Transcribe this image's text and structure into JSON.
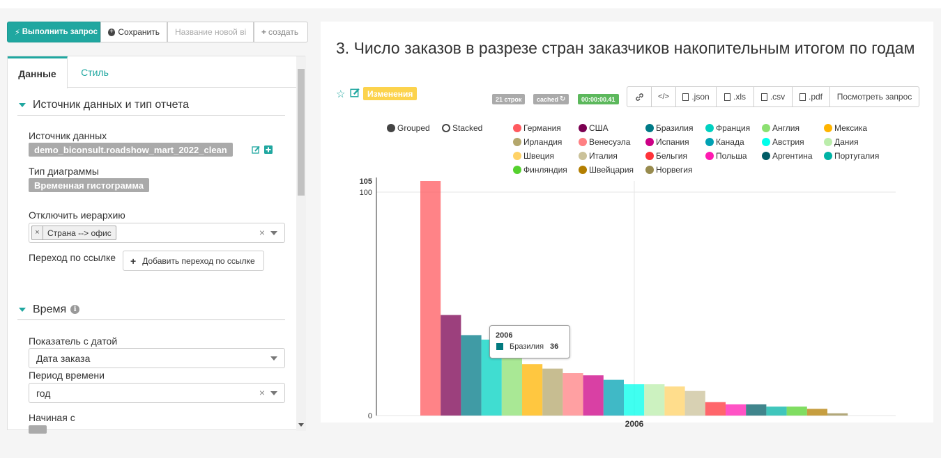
{
  "toolbar": {
    "run_label": "Выполнить запрос",
    "save_label": "Сохранить",
    "name_placeholder": "Название новой ві",
    "create_label": "создать"
  },
  "tabs": [
    {
      "label": "Данные",
      "active": true
    },
    {
      "label": "Стиль",
      "active": false
    }
  ],
  "datasource_section": {
    "title": "Источник данных и тип отчета",
    "datasource_label": "Источник данных",
    "datasource_value": "demo_biconsult.roadshow_mart_2022_clean",
    "viz_type_label": "Тип диаграммы",
    "viz_type_value": "Временная гистограмма",
    "hierarchy_label": "Отключить иерархию",
    "hierarchy_chip": "Страна --> офис",
    "link_label": "Переход по ссылке",
    "add_link_button": "Добавить переход по ссылке"
  },
  "time_section": {
    "title": "Время",
    "date_metric_label": "Показатель с датой",
    "date_metric_value": "Дата заказа",
    "period_label": "Период времени",
    "period_value": "год",
    "start_label": "Начиная с"
  },
  "chart_header": {
    "title": "3. Число заказов в разрезе стран заказчиков накопительным итогом по годам",
    "changes_badge": "Изменения",
    "rows_badge": "21 строк",
    "cached_badge": "cached",
    "time_badge": "00:00:00.41",
    "actions": [
      ".json",
      ".xls",
      ".csv",
      ".pdf",
      "Посмотреть запрос"
    ]
  },
  "view_modes": [
    "Grouped",
    "Stacked"
  ],
  "tooltip": {
    "title": "2006",
    "series": "Бразилия",
    "value": "36",
    "color": "#027a7f"
  },
  "chart_data": {
    "type": "bar",
    "categories": [
      "2006"
    ],
    "xlabel": "2006",
    "ylim": [
      0,
      105
    ],
    "yticks": [
      "0",
      "100",
      "105"
    ],
    "series": [
      {
        "name": "Германия",
        "value": 105,
        "color": "#ff5a5f"
      },
      {
        "name": "США",
        "value": 45,
        "color": "#7b0051"
      },
      {
        "name": "Бразилия",
        "value": 36,
        "color": "#007a87"
      },
      {
        "name": "Франция",
        "value": 34,
        "color": "#00d1c1"
      },
      {
        "name": "Англия",
        "value": 29,
        "color": "#8ce071"
      },
      {
        "name": "Мексика",
        "value": 23,
        "color": "#ffb400"
      },
      {
        "name": "Ирландия",
        "value": 21,
        "color": "#b4a76c"
      },
      {
        "name": "Венесуэла",
        "value": 19,
        "color": "#ff8083"
      },
      {
        "name": "Испания",
        "value": 18,
        "color": "#cc0086"
      },
      {
        "name": "Канада",
        "value": 16,
        "color": "#00a1b3"
      },
      {
        "name": "Австрия",
        "value": 14,
        "color": "#00ffeb"
      },
      {
        "name": "Дания",
        "value": 14,
        "color": "#bbedab"
      },
      {
        "name": "Швеция",
        "value": 13,
        "color": "#ffd266"
      },
      {
        "name": "Италия",
        "value": 11,
        "color": "#cbc29a"
      },
      {
        "name": "Бельгия",
        "value": 6,
        "color": "#ff3339"
      },
      {
        "name": "Польша",
        "value": 5,
        "color": "#ff1ab1"
      },
      {
        "name": "Аргентина",
        "value": 5,
        "color": "#005c66"
      },
      {
        "name": "Португалия",
        "value": 4,
        "color": "#00b3a5"
      },
      {
        "name": "Финляндия",
        "value": 4,
        "color": "#55d12e"
      },
      {
        "name": "Швейцария",
        "value": 3,
        "color": "#b37e00"
      },
      {
        "name": "Норвегия",
        "value": 1,
        "color": "#988b4e"
      }
    ]
  }
}
